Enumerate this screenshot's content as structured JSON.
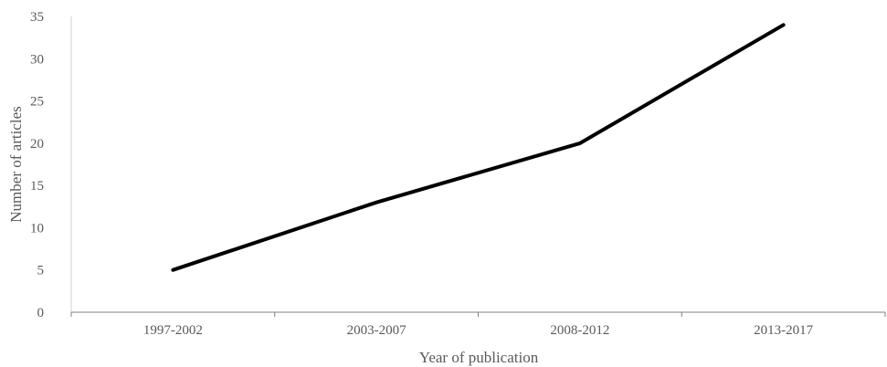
{
  "chart_data": {
    "type": "line",
    "title": "",
    "xlabel": "Year of publication",
    "ylabel": "Number of articles",
    "categories": [
      "1997-2002",
      "2003-2007",
      "2008-2012",
      "2013-2017"
    ],
    "series": [
      {
        "values": [
          5,
          13,
          20,
          34
        ],
        "color": "#000000"
      }
    ],
    "ylim": [
      0,
      35
    ],
    "yticks": [
      "0",
      "5",
      "10",
      "15",
      "20",
      "25",
      "30",
      "35"
    ],
    "grid": false,
    "legend": "none"
  }
}
